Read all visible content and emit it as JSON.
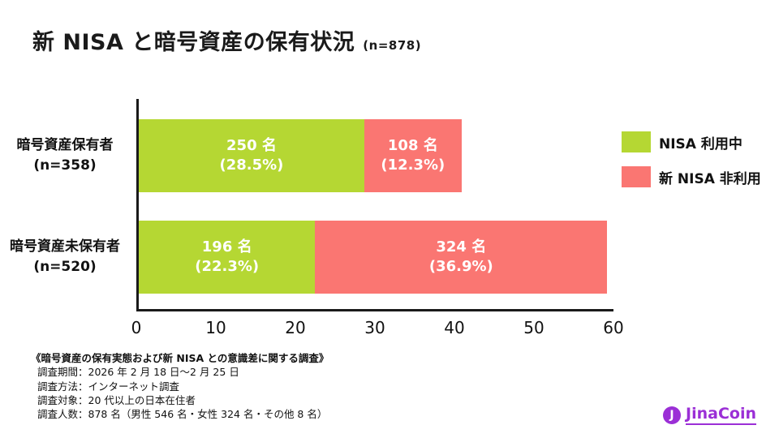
{
  "title": {
    "main": "新 NISA と暗号資産の保有状況",
    "sample": "(n=878)"
  },
  "chart_data": {
    "type": "bar",
    "orientation": "horizontal",
    "stacked": true,
    "title": "新 NISA と暗号資産の保有状況 (n=878)",
    "categories": [
      {
        "line1": "暗号資産保有者",
        "line2": "(n=358)"
      },
      {
        "line1": "暗号資産未保有者",
        "line2": "(n=520)"
      }
    ],
    "series": [
      {
        "name": "NISA 利用中",
        "color": "#b5d733",
        "values": [
          28.5,
          22.3
        ],
        "value_labels": [
          [
            "250 名",
            "(28.5%)"
          ],
          [
            "196 名",
            "(22.3%)"
          ]
        ]
      },
      {
        "name": "新 NISA 非利用",
        "color": "#fa7672",
        "values": [
          12.3,
          36.9
        ],
        "value_labels": [
          [
            "108 名",
            "(12.3%)"
          ],
          [
            "324 名",
            "(36.9%)"
          ]
        ]
      }
    ],
    "x_axis": {
      "min": 0,
      "max": 60,
      "ticks": [
        0,
        10,
        20,
        30,
        40,
        50,
        60
      ]
    },
    "legend_position": "right",
    "grid": false
  },
  "footer": {
    "title": "《暗号資産の保有実態および新 NISA との意識差に関する調査》",
    "lines": [
      "調査期間：2026 年 2 月 18 日〜2 月 25 日",
      "調査方法：インターネット調査",
      "調査対象：20 代以上の日本在住者",
      "調査人数：878 名（男性 546 名・女性 324 名・その他 8 名）"
    ]
  },
  "logo": {
    "text": "JinaCoin",
    "initial": "J",
    "color": "#9b2fd6"
  }
}
